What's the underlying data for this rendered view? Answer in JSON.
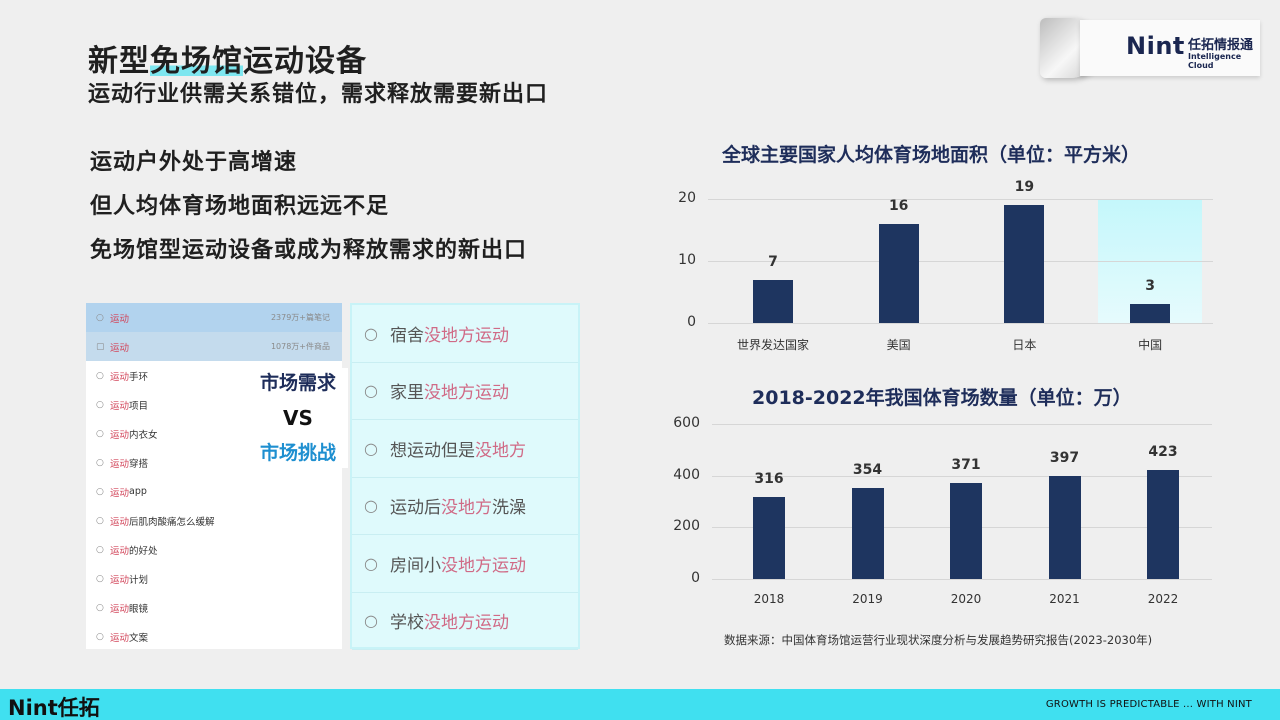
{
  "header": {
    "title_pre": "新型",
    "title_hl": "免场馆",
    "title_post": "运动设备",
    "subtitle": "运动行业供需关系错位，需求释放需要新出口"
  },
  "logo": {
    "brand": "Nint",
    "cn": "任拓情报通",
    "en": "Intelligence Cloud"
  },
  "bullets": [
    "运动户外处于高增速",
    "但人均体育场地面积远远不足",
    "免场馆型运动设备或成为释放需求的新出口"
  ],
  "search_list": [
    {
      "icon": "search-icon",
      "kw": "运动",
      "rest": "",
      "count": "2379万+篇笔记"
    },
    {
      "icon": "bag-icon",
      "kw": "运动",
      "rest": "",
      "count": "1078万+件商品"
    },
    {
      "icon": "search-icon",
      "kw": "运动",
      "rest": "手环",
      "count": ""
    },
    {
      "icon": "search-icon",
      "kw": "运动",
      "rest": "项目",
      "count": ""
    },
    {
      "icon": "search-icon",
      "kw": "运动",
      "rest": "内衣女",
      "count": ""
    },
    {
      "icon": "search-icon",
      "kw": "运动",
      "rest": "穿搭",
      "count": ""
    },
    {
      "icon": "search-icon",
      "kw": "运动",
      "rest": "app",
      "count": ""
    },
    {
      "icon": "search-icon",
      "kw": "运动",
      "rest": "后肌肉酸痛怎么缓解",
      "count": ""
    },
    {
      "icon": "search-icon",
      "kw": "运动",
      "rest": "的好处",
      "count": ""
    },
    {
      "icon": "search-icon",
      "kw": "运动",
      "rest": "计划",
      "count": ""
    },
    {
      "icon": "search-icon",
      "kw": "运动",
      "rest": "眼镜",
      "count": ""
    },
    {
      "icon": "search-icon",
      "kw": "运动",
      "rest": "文案",
      "count": ""
    }
  ],
  "vs": {
    "demand": "市场需求",
    "vs": "VS",
    "challenge": "市场挑战"
  },
  "queries": [
    {
      "pre": "宿舍",
      "pink": "没地方运动",
      "post": ""
    },
    {
      "pre": "家里",
      "pink": "没地方运动",
      "post": ""
    },
    {
      "pre": "想运动但是",
      "pink": "没地方",
      "post": ""
    },
    {
      "pre": "运动后",
      "pink": "没地方",
      "post": "洗澡"
    },
    {
      "pre": "房间小",
      "pink": "没地方运动",
      "post": ""
    },
    {
      "pre": "学校",
      "pink": "没地方运动",
      "post": ""
    }
  ],
  "colors": {
    "bar": "#1e3560",
    "accent": "#40e0f0",
    "highlight": "#c4f7fb",
    "pink": "#d06a86"
  },
  "chart_data": [
    {
      "type": "bar",
      "title": "全球主要国家人均体育场地面积（单位：平方米）",
      "categories": [
        "世界发达国家",
        "美国",
        "日本",
        "中国"
      ],
      "values": [
        7,
        16,
        19,
        3
      ],
      "value_labels": [
        "7",
        "16",
        "19",
        "3"
      ],
      "ylim": [
        0,
        20
      ],
      "yticks": [
        "0",
        "10",
        "20"
      ],
      "highlight_category": "中国",
      "grid": true
    },
    {
      "type": "bar",
      "title": "2018-2022年我国体育场数量（单位：万）",
      "categories": [
        "2018",
        "2019",
        "2020",
        "2021",
        "2022"
      ],
      "values": [
        316,
        354,
        371,
        397,
        423
      ],
      "value_labels": [
        "316",
        "354",
        "371",
        "397",
        "423"
      ],
      "ylim": [
        0,
        600
      ],
      "yticks": [
        "0",
        "200",
        "400",
        "600"
      ],
      "grid": true
    }
  ],
  "source": "数据来源：中国体育场馆运营行业现状深度分析与发展趋势研究报告(2023-2030年)",
  "footer": {
    "brand": "Nint任拓",
    "tagline": "GROWTH IS PREDICTABLE ... WITH NINT"
  }
}
